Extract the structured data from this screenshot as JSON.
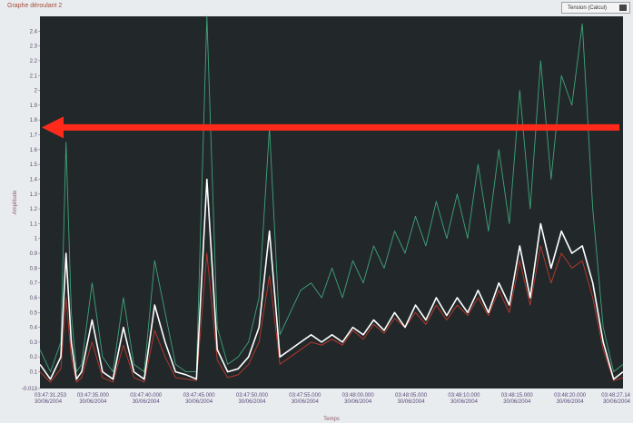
{
  "window": {
    "title": "Graphe déroulant 2"
  },
  "legend": {
    "text": "Tension (Calcul)"
  },
  "chart_data": {
    "type": "line",
    "title": "Graphe déroulant 2",
    "xlabel": "Temps",
    "ylabel": "Amplitude",
    "ylim": [
      -0.013,
      2.5
    ],
    "y_ticks": [
      "-0.013",
      "0.1",
      "0.2",
      "0.3",
      "0.4",
      "0.5",
      "0.6",
      "0.7",
      "0.8",
      "0.9",
      "1",
      "1.1",
      "1.2",
      "1.3",
      "1.4",
      "1.5",
      "1.6",
      "1.7",
      "1.8",
      "1.9",
      "2",
      "2.1",
      "2.2",
      "2.3",
      "2.4"
    ],
    "x_ticks": [
      [
        "03:47:31.253",
        "30/06/2004"
      ],
      [
        "03:47:35.000",
        "30/06/2004"
      ],
      [
        "03:47:40.000",
        "30/06/2004"
      ],
      [
        "03:47:45.000",
        "30/06/2004"
      ],
      [
        "03:47:50.000",
        "30/06/2004"
      ],
      [
        "03:47:55.000",
        "30/06/2004"
      ],
      [
        "03:48:00.000",
        "30/06/2004"
      ],
      [
        "03:48:05.000",
        "30/06/2004"
      ],
      [
        "03:48:10.000",
        "30/06/2004"
      ],
      [
        "03:48:15.000",
        "30/06/2004"
      ],
      [
        "03:48:20.000",
        "30/06/2004"
      ],
      [
        "03:48:27.14",
        "30/06/2004"
      ]
    ],
    "xlim": [
      0,
      55.9
    ],
    "marker_level": 1.75,
    "grid": false,
    "series_style": [
      {
        "color": "#ffffff",
        "width": 1.6
      },
      {
        "color": "#3fa37a",
        "width": 0.9
      },
      {
        "color": "#c0392b",
        "width": 0.9
      }
    ],
    "series": [
      {
        "x": [
          0,
          1,
          2,
          2.5,
          3,
          3.5,
          4,
          5,
          6,
          7,
          8,
          9,
          10,
          11,
          12,
          13,
          14,
          15,
          16,
          17,
          18,
          19,
          20,
          21,
          22,
          23,
          24,
          25,
          26,
          27,
          28,
          29,
          30,
          31,
          32,
          33,
          34,
          35,
          36,
          37,
          38,
          39,
          40,
          41,
          42,
          43,
          44,
          45,
          46,
          47,
          48,
          49,
          50,
          51,
          52,
          53,
          54,
          55,
          55.9
        ],
        "y": [
          0.15,
          0.05,
          0.2,
          0.9,
          0.3,
          0.05,
          0.1,
          0.45,
          0.1,
          0.05,
          0.4,
          0.1,
          0.05,
          0.55,
          0.3,
          0.1,
          0.08,
          0.05,
          1.4,
          0.25,
          0.1,
          0.12,
          0.2,
          0.4,
          1.05,
          0.2,
          0.25,
          0.3,
          0.35,
          0.3,
          0.35,
          0.3,
          0.4,
          0.35,
          0.45,
          0.38,
          0.5,
          0.4,
          0.55,
          0.45,
          0.6,
          0.48,
          0.6,
          0.5,
          0.65,
          0.5,
          0.7,
          0.55,
          0.95,
          0.6,
          1.1,
          0.8,
          1.05,
          0.9,
          0.95,
          0.7,
          0.3,
          0.05,
          0.1
        ]
      },
      {
        "x": [
          0,
          1,
          2,
          2.5,
          3,
          3.5,
          4,
          5,
          6,
          7,
          8,
          9,
          10,
          11,
          12,
          13,
          14,
          15,
          16,
          17,
          18,
          19,
          20,
          21,
          22,
          23,
          24,
          25,
          26,
          27,
          28,
          29,
          30,
          31,
          32,
          33,
          34,
          35,
          36,
          37,
          38,
          39,
          40,
          41,
          42,
          43,
          44,
          45,
          46,
          47,
          48,
          49,
          50,
          51,
          52,
          53,
          54,
          55,
          55.9
        ],
        "y": [
          0.25,
          0.1,
          0.3,
          1.65,
          0.5,
          0.1,
          0.15,
          0.7,
          0.2,
          0.1,
          0.6,
          0.15,
          0.1,
          0.85,
          0.5,
          0.15,
          0.1,
          0.1,
          2.5,
          0.4,
          0.15,
          0.2,
          0.3,
          0.6,
          1.75,
          0.35,
          0.5,
          0.65,
          0.7,
          0.6,
          0.8,
          0.6,
          0.85,
          0.7,
          0.95,
          0.8,
          1.05,
          0.9,
          1.15,
          0.95,
          1.25,
          1.0,
          1.3,
          1.0,
          1.5,
          1.05,
          1.6,
          1.1,
          2.0,
          1.2,
          2.2,
          1.4,
          2.1,
          1.9,
          2.45,
          1.2,
          0.4,
          0.1,
          0.15
        ]
      },
      {
        "x": [
          0,
          1,
          2,
          2.5,
          3,
          3.5,
          4,
          5,
          6,
          7,
          8,
          9,
          10,
          11,
          12,
          13,
          14,
          15,
          16,
          17,
          18,
          19,
          20,
          21,
          22,
          23,
          24,
          25,
          26,
          27,
          28,
          29,
          30,
          31,
          32,
          33,
          34,
          35,
          36,
          37,
          38,
          39,
          40,
          41,
          42,
          43,
          44,
          45,
          46,
          47,
          48,
          49,
          50,
          51,
          52,
          53,
          54,
          55,
          55.9
        ],
        "y": [
          0.1,
          0.03,
          0.12,
          0.6,
          0.2,
          0.03,
          0.06,
          0.3,
          0.06,
          0.03,
          0.28,
          0.06,
          0.03,
          0.38,
          0.2,
          0.06,
          0.05,
          0.04,
          0.9,
          0.18,
          0.06,
          0.08,
          0.15,
          0.3,
          0.75,
          0.15,
          0.2,
          0.25,
          0.3,
          0.28,
          0.32,
          0.28,
          0.38,
          0.32,
          0.42,
          0.36,
          0.46,
          0.4,
          0.5,
          0.42,
          0.55,
          0.45,
          0.55,
          0.48,
          0.6,
          0.48,
          0.65,
          0.5,
          0.85,
          0.55,
          0.95,
          0.7,
          0.9,
          0.8,
          0.85,
          0.6,
          0.25,
          0.04,
          0.06
        ]
      }
    ]
  }
}
